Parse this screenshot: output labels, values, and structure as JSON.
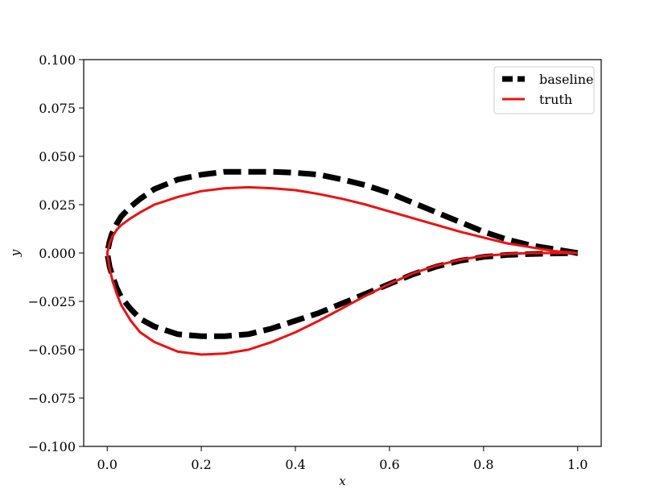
{
  "chart_data": {
    "type": "line",
    "title": "",
    "xlabel": "x",
    "ylabel": "y",
    "xlim": [
      -0.05,
      1.05
    ],
    "ylim": [
      -0.1,
      0.1
    ],
    "xticks": [
      0.0,
      0.2,
      0.4,
      0.6,
      0.8,
      1.0
    ],
    "xtick_labels": [
      "0.0",
      "0.2",
      "0.4",
      "0.6",
      "0.8",
      "1.0"
    ],
    "yticks": [
      -0.1,
      -0.075,
      -0.05,
      -0.025,
      0.0,
      0.025,
      0.05,
      0.075,
      0.1
    ],
    "ytick_labels": [
      "−0.100",
      "−0.075",
      "−0.050",
      "−0.025",
      "0.000",
      "0.025",
      "0.050",
      "0.075",
      "0.100"
    ],
    "grid": false,
    "legend_position": "top-right",
    "series": [
      {
        "name": "baseline",
        "color": "#000000",
        "style": "dashed",
        "x": [
          1.0,
          0.95,
          0.9,
          0.85,
          0.8,
          0.75,
          0.7,
          0.65,
          0.6,
          0.55,
          0.5,
          0.45,
          0.4,
          0.35,
          0.3,
          0.25,
          0.2,
          0.15,
          0.1,
          0.07,
          0.05,
          0.03,
          0.02,
          0.01,
          0.005,
          0.0,
          0.005,
          0.01,
          0.02,
          0.03,
          0.05,
          0.07,
          0.1,
          0.15,
          0.2,
          0.25,
          0.3,
          0.35,
          0.4,
          0.45,
          0.5,
          0.55,
          0.6,
          0.65,
          0.7,
          0.75,
          0.8,
          0.85,
          0.9,
          0.95,
          1.0
        ],
        "y": [
          0.0,
          0.002,
          0.004,
          0.007,
          0.011,
          0.016,
          0.021,
          0.026,
          0.031,
          0.035,
          0.038,
          0.0405,
          0.0415,
          0.042,
          0.042,
          0.042,
          0.0405,
          0.038,
          0.033,
          0.028,
          0.024,
          0.019,
          0.015,
          0.01,
          0.006,
          0.0,
          -0.007,
          -0.011,
          -0.018,
          -0.023,
          -0.029,
          -0.034,
          -0.038,
          -0.042,
          -0.043,
          -0.043,
          -0.042,
          -0.039,
          -0.035,
          -0.031,
          -0.026,
          -0.021,
          -0.016,
          -0.011,
          -0.007,
          -0.004,
          -0.002,
          -0.001,
          -0.0005,
          -0.0002,
          0.0
        ]
      },
      {
        "name": "truth",
        "color": "#ee1111",
        "style": "solid",
        "x": [
          1.0,
          0.95,
          0.9,
          0.85,
          0.8,
          0.75,
          0.7,
          0.65,
          0.6,
          0.55,
          0.5,
          0.45,
          0.4,
          0.35,
          0.3,
          0.25,
          0.2,
          0.15,
          0.1,
          0.07,
          0.05,
          0.03,
          0.02,
          0.01,
          0.005,
          0.0,
          0.005,
          0.01,
          0.02,
          0.03,
          0.05,
          0.07,
          0.1,
          0.15,
          0.2,
          0.25,
          0.3,
          0.35,
          0.4,
          0.45,
          0.5,
          0.55,
          0.6,
          0.65,
          0.7,
          0.75,
          0.8,
          0.85,
          0.9,
          0.95,
          1.0
        ],
        "y": [
          0.0,
          0.001,
          0.003,
          0.005,
          0.008,
          0.011,
          0.0145,
          0.018,
          0.0215,
          0.025,
          0.028,
          0.0305,
          0.0325,
          0.0335,
          0.034,
          0.0335,
          0.032,
          0.029,
          0.025,
          0.021,
          0.018,
          0.0145,
          0.012,
          0.008,
          0.005,
          0.0,
          -0.008,
          -0.013,
          -0.021,
          -0.027,
          -0.035,
          -0.041,
          -0.046,
          -0.051,
          -0.0525,
          -0.052,
          -0.05,
          -0.046,
          -0.041,
          -0.035,
          -0.0285,
          -0.022,
          -0.016,
          -0.0105,
          -0.0065,
          -0.0035,
          -0.0015,
          -0.0005,
          0.0,
          0.0,
          0.0
        ]
      }
    ]
  }
}
